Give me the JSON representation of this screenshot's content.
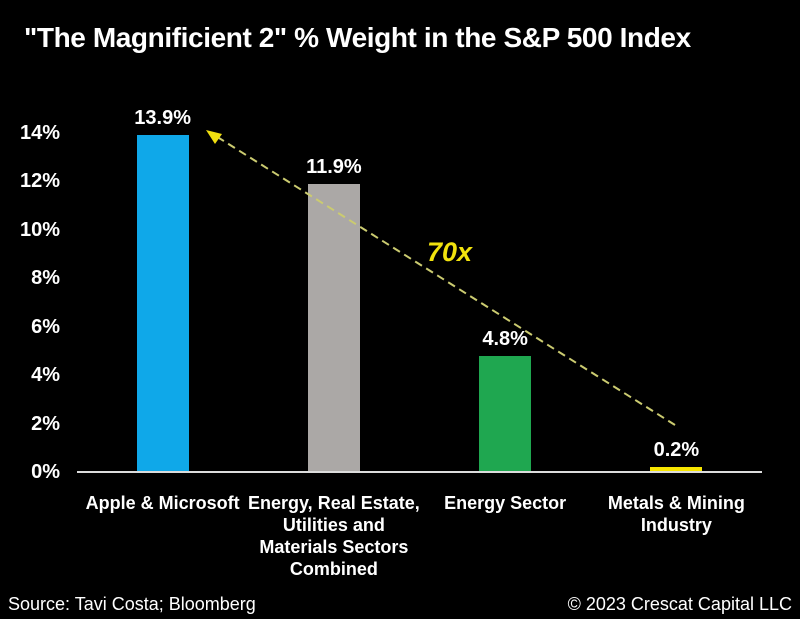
{
  "chart_data": {
    "type": "bar",
    "title": "\"The Magnificient 2\" % Weight in the S&P 500 Index",
    "categories": [
      "Apple & Microsoft",
      "Energy, Real Estate,\nUtilities and\nMaterials Sectors\nCombined",
      "Energy Sector",
      "Metals & Mining\nIndustry"
    ],
    "values": [
      13.9,
      11.9,
      4.8,
      0.2
    ],
    "data_labels": [
      "13.9%",
      "11.9%",
      "4.8%",
      "0.2%"
    ],
    "bar_colors": [
      "#0FA8E9",
      "#ABA8A6",
      "#1FA750",
      "#F7E600"
    ],
    "xlabel": "",
    "ylabel": "",
    "ylim": [
      0,
      14
    ],
    "ytick_step": 2,
    "ytick_labels": [
      "0%",
      "2%",
      "4%",
      "6%",
      "8%",
      "10%",
      "12%",
      "14%"
    ],
    "grid": false,
    "legend": "none",
    "annotation": {
      "text": "70x",
      "color": "#F2E30E"
    },
    "arrow": {
      "style": "dashed",
      "color": "#CBCB70",
      "head_color": "#F0DF10",
      "from": "Metals & Mining Industry bar",
      "to": "Apple & Microsoft bar top"
    }
  },
  "footer": {
    "source": "Source: Tavi Costa; Bloomberg",
    "copyright": "© 2023 Crescat Capital LLC"
  },
  "colors": {
    "background": "#000000",
    "text": "#FFFFFF",
    "axis": "#DCDCDC"
  }
}
